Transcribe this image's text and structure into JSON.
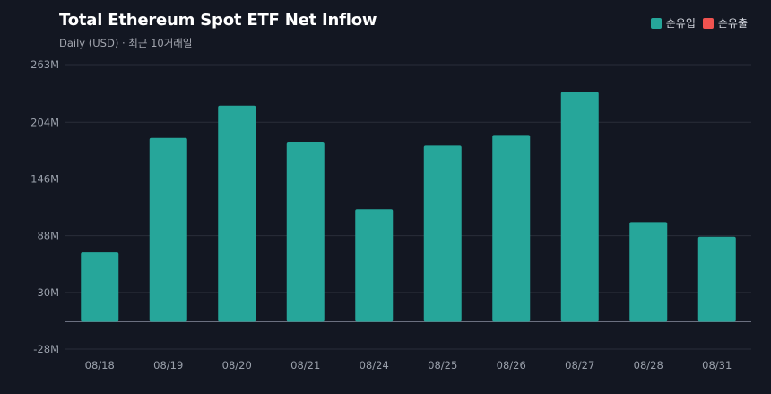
{
  "header": {
    "title": "Total Ethereum Spot ETF Net Inflow",
    "subtitle": "Daily (USD) · 최근 10거래일"
  },
  "legend": [
    {
      "label": "순유입",
      "color": "#26a69a"
    },
    {
      "label": "순유출",
      "color": "#ef5350"
    }
  ],
  "colors": {
    "background": "#131722",
    "inflow": "#26a69a",
    "outflow": "#ef5350",
    "grid": "#2a2e39"
  },
  "chart_data": {
    "type": "bar",
    "categories": [
      "08/18",
      "08/19",
      "08/20",
      "08/21",
      "08/24",
      "08/25",
      "08/26",
      "08/27",
      "08/28",
      "08/31"
    ],
    "values": [
      71,
      188,
      221,
      184,
      115,
      180,
      191,
      235,
      102,
      87
    ],
    "y_ticks": [
      "263M",
      "204M",
      "146M",
      "88M",
      "30M",
      "-28M"
    ],
    "y_tick_values": [
      263,
      204,
      146,
      88,
      30,
      -28
    ],
    "ylim": [
      -28,
      263
    ],
    "units": "M",
    "grid": true,
    "legend_position": "top-right"
  }
}
